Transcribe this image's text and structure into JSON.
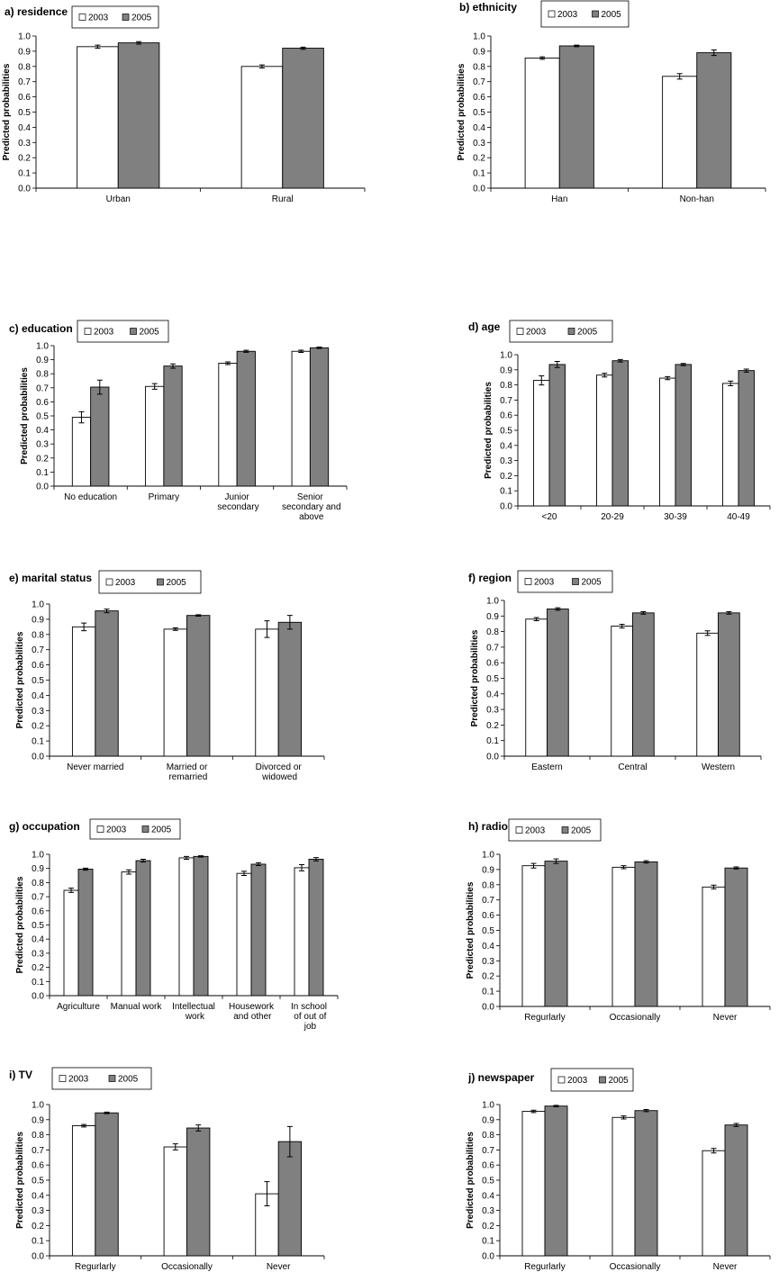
{
  "chart_data": [
    {
      "type": "bar",
      "title": "a) residence",
      "ylabel": "Predicted probabilities",
      "categories": [
        "Urban",
        "Rural"
      ],
      "series": [
        {
          "name": "2003",
          "color": "#ffffff",
          "values": [
            0.93,
            0.8
          ],
          "errors": [
            0.01,
            0.01
          ]
        },
        {
          "name": "2005",
          "color": "#808080",
          "values": [
            0.955,
            0.92
          ],
          "errors": [
            0.008,
            0.007
          ]
        }
      ],
      "ylim": [
        0,
        1
      ],
      "yticks": [
        {
          "value": 0,
          "label": "0.0"
        },
        0.1,
        0.2,
        0.3,
        0.4,
        0.5,
        0.6,
        0.7,
        0.8,
        0.9,
        {
          "value": 1,
          "label": "1.0"
        }
      ]
    },
    {
      "type": "bar",
      "title": "b) ethnicity",
      "ylabel": "Predicted probabilities",
      "categories": [
        "Han",
        "Non-han"
      ],
      "series": [
        {
          "name": "2003",
          "color": "#ffffff",
          "values": [
            0.855,
            0.735
          ],
          "errors": [
            0.008,
            0.018
          ]
        },
        {
          "name": "2005",
          "color": "#808080",
          "values": [
            0.935,
            0.89
          ],
          "errors": [
            0.005,
            0.018
          ]
        }
      ],
      "ylim": [
        0,
        1
      ],
      "yticks": [
        {
          "value": 0,
          "label": "0.0"
        },
        0.1,
        0.2,
        0.3,
        0.4,
        0.5,
        0.6,
        0.7,
        0.8,
        0.9,
        {
          "value": 1,
          "label": "1.0"
        }
      ]
    },
    {
      "type": "bar",
      "title": "c) education",
      "ylabel": "Predicted probabilities",
      "categories": [
        "No education",
        "Primary",
        "Junior secondary",
        "Senior secondary and above"
      ],
      "series": [
        {
          "name": "2003",
          "color": "#ffffff",
          "values": [
            0.49,
            0.71,
            0.875,
            0.96
          ],
          "errors": [
            0.04,
            0.02,
            0.01,
            0.008
          ]
        },
        {
          "name": "2005",
          "color": "#808080",
          "values": [
            0.705,
            0.855,
            0.96,
            0.985
          ],
          "errors": [
            0.05,
            0.015,
            0.007,
            0.005
          ]
        }
      ],
      "ylim": [
        0,
        1
      ],
      "yticks": [
        {
          "value": 0,
          "label": "0.0"
        },
        0.1,
        0.2,
        0.3,
        0.4,
        0.5,
        0.6,
        0.7,
        0.8,
        0.9,
        {
          "value": 1,
          "label": "1.0"
        }
      ]
    },
    {
      "type": "bar",
      "title": "d) age",
      "ylabel": "Predicted probabilities",
      "categories": [
        "<20",
        "20-29",
        "30-39",
        "40-49"
      ],
      "series": [
        {
          "name": "2003",
          "color": "#ffffff",
          "values": [
            0.83,
            0.865,
            0.845,
            0.81
          ],
          "errors": [
            0.03,
            0.012,
            0.01,
            0.015
          ]
        },
        {
          "name": "2005",
          "color": "#808080",
          "values": [
            0.935,
            0.96,
            0.935,
            0.895
          ],
          "errors": [
            0.02,
            0.008,
            0.007,
            0.01
          ]
        }
      ],
      "ylim": [
        0,
        1
      ],
      "yticks": [
        {
          "value": 0,
          "label": "0.0"
        },
        0.1,
        0.2,
        0.3,
        0.4,
        0.5,
        0.6,
        0.7,
        0.8,
        0.9,
        {
          "value": 1,
          "label": "1.0"
        }
      ]
    },
    {
      "type": "bar",
      "title": "e) marital status",
      "ylabel": "Predicted probabilities",
      "categories": [
        "Never married",
        "Married or remarried",
        "Divorced or widowed"
      ],
      "series": [
        {
          "name": "2003",
          "color": "#ffffff",
          "values": [
            0.85,
            0.835,
            0.835
          ],
          "errors": [
            0.025,
            0.008,
            0.055
          ]
        },
        {
          "name": "2005",
          "color": "#808080",
          "values": [
            0.955,
            0.925,
            0.88
          ],
          "errors": [
            0.012,
            0.005,
            0.045
          ]
        }
      ],
      "ylim": [
        0,
        1
      ],
      "yticks": [
        {
          "value": 0,
          "label": "0.0"
        },
        0.1,
        0.2,
        0.3,
        0.4,
        0.5,
        0.6,
        0.7,
        0.8,
        0.9,
        {
          "value": 1,
          "label": "1.0"
        }
      ]
    },
    {
      "type": "bar",
      "title": "f) region",
      "ylabel": "Predicted probabilities",
      "categories": [
        "Eastern",
        "Central",
        "Western"
      ],
      "series": [
        {
          "name": "2003",
          "color": "#ffffff",
          "values": [
            0.88,
            0.835,
            0.79
          ],
          "errors": [
            0.01,
            0.012,
            0.015
          ]
        },
        {
          "name": "2005",
          "color": "#808080",
          "values": [
            0.945,
            0.92,
            0.92
          ],
          "errors": [
            0.008,
            0.008,
            0.008
          ]
        }
      ],
      "ylim": [
        0,
        1
      ],
      "yticks": [
        {
          "value": 0,
          "label": "0.0"
        },
        0.1,
        0.2,
        0.3,
        0.4,
        0.5,
        0.6,
        0.7,
        0.8,
        0.9,
        {
          "value": 1,
          "label": "1.0"
        }
      ]
    },
    {
      "type": "bar",
      "title": "g) occupation",
      "ylabel": "Predicted probabilities",
      "categories": [
        "Agriculture",
        "Manual work",
        "Intellectual work",
        "Housework and other",
        "In school of out of job"
      ],
      "series": [
        {
          "name": "2003",
          "color": "#ffffff",
          "values": [
            0.745,
            0.875,
            0.975,
            0.865,
            0.905
          ],
          "errors": [
            0.015,
            0.015,
            0.01,
            0.015,
            0.022
          ]
        },
        {
          "name": "2005",
          "color": "#808080",
          "values": [
            0.895,
            0.955,
            0.985,
            0.93,
            0.965
          ],
          "errors": [
            0.007,
            0.01,
            0.005,
            0.01,
            0.012
          ]
        }
      ],
      "ylim": [
        0,
        1
      ],
      "yticks": [
        {
          "value": 0,
          "label": "0.0"
        },
        0.1,
        0.2,
        0.3,
        0.4,
        0.5,
        0.6,
        0.7,
        0.8,
        0.9,
        {
          "value": 1,
          "label": "1.0"
        }
      ]
    },
    {
      "type": "bar",
      "title": "h) radio",
      "ylabel": "Predicted probabilities",
      "categories": [
        "Regurlarly",
        "Occasionally",
        "Never"
      ],
      "series": [
        {
          "name": "2003",
          "color": "#ffffff",
          "values": [
            0.925,
            0.915,
            0.785
          ],
          "errors": [
            0.015,
            0.01,
            0.012
          ]
        },
        {
          "name": "2005",
          "color": "#808080",
          "values": [
            0.955,
            0.95,
            0.91
          ],
          "errors": [
            0.015,
            0.008,
            0.007
          ]
        }
      ],
      "ylim": [
        0,
        1
      ],
      "yticks": [
        {
          "value": 0,
          "label": "0.0"
        },
        0.1,
        0.2,
        0.3,
        0.4,
        0.5,
        0.6,
        0.7,
        0.8,
        0.9,
        {
          "value": 1,
          "label": "1.0"
        }
      ]
    },
    {
      "type": "bar",
      "title": "i) TV",
      "ylabel": "Predicted probabilities",
      "categories": [
        "Regurlarly",
        "Occasionally",
        "Never"
      ],
      "series": [
        {
          "name": "2003",
          "color": "#ffffff",
          "values": [
            0.86,
            0.72,
            0.41
          ],
          "errors": [
            0.008,
            0.02,
            0.08
          ]
        },
        {
          "name": "2005",
          "color": "#808080",
          "values": [
            0.945,
            0.845,
            0.755
          ],
          "errors": [
            0.005,
            0.02,
            0.1
          ]
        }
      ],
      "ylim": [
        0,
        1
      ],
      "yticks": [
        {
          "value": 0,
          "label": "0.0"
        },
        0.1,
        0.2,
        0.3,
        0.4,
        0.5,
        0.6,
        0.7,
        0.8,
        0.9,
        {
          "value": 1,
          "label": "1.0"
        }
      ]
    },
    {
      "type": "bar",
      "title": "j) newspaper",
      "ylabel": "Predicted probabilities",
      "categories": [
        "Regurlarly",
        "Occasionally",
        "Never"
      ],
      "series": [
        {
          "name": "2003",
          "color": "#ffffff",
          "values": [
            0.955,
            0.915,
            0.695
          ],
          "errors": [
            0.008,
            0.01,
            0.015
          ]
        },
        {
          "name": "2005",
          "color": "#808080",
          "values": [
            0.99,
            0.96,
            0.865
          ],
          "errors": [
            0.005,
            0.007,
            0.01
          ]
        }
      ],
      "ylim": [
        0,
        1
      ],
      "yticks": [
        {
          "value": 0,
          "label": "0.0"
        },
        0.1,
        0.2,
        0.3,
        0.4,
        0.5,
        0.6,
        0.7,
        0.8,
        0.9,
        {
          "value": 1,
          "label": "1.0"
        }
      ]
    }
  ]
}
